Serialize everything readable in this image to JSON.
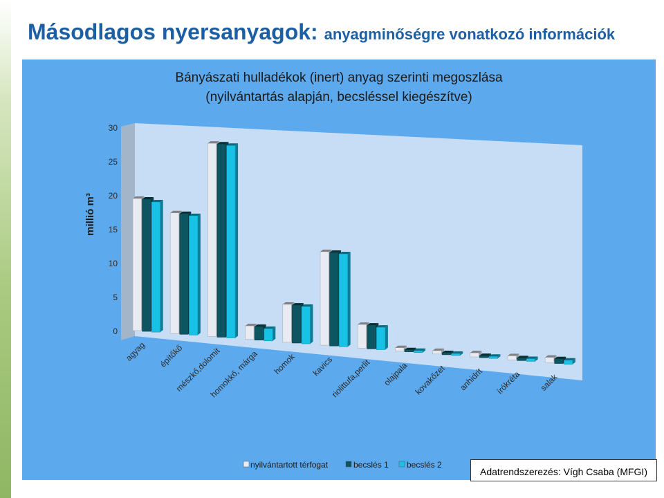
{
  "header": {
    "title_main": "Másodlagos nyersanyagok:",
    "title_sub": "anyagminőségre vonatkozó információk"
  },
  "credit": "Adatrendszerezés: Vígh Csaba (MFGI)",
  "colors": {
    "background": "#5ca9ee",
    "plot_wall": "#c6ddf5",
    "title_blue": "#1d5fa3",
    "series1": "#e8ebf2",
    "series2": "#0d5560",
    "series3": "#18c1e6"
  },
  "chart_data": {
    "type": "bar",
    "title_line1": "Bányászati hulladékok (inert) anyag szerinti megoszlása",
    "title_line2": "(nyilvántartás alapján, becsléssel kiegészítve)",
    "ylabel": "millió m³",
    "ylim": [
      0,
      30
    ],
    "yticks": [
      "0",
      "5",
      "10",
      "15",
      "20",
      "25",
      "30"
    ],
    "categories": [
      "agyag",
      "építőkő",
      "mészkő,dolomit",
      "homokkő, márga",
      "homok",
      "kavics",
      "riolittufa,perlit",
      "olajpala",
      "kovakőzet",
      "anhidrit",
      "írókréta",
      "salak"
    ],
    "series": [
      {
        "name": "nyilvántartott térfogat",
        "values": [
          19.5,
          17.8,
          28.5,
          2,
          5.6,
          13.8,
          3.5,
          0.5,
          0.5,
          0.6,
          0.6,
          0.8
        ]
      },
      {
        "name": "becslés 1",
        "values": [
          19.5,
          17.8,
          28.5,
          2,
          5.6,
          13.8,
          3.5,
          0.3,
          0.3,
          0.3,
          0.4,
          0.7
        ]
      },
      {
        "name": "becslés 2",
        "values": [
          19.2,
          17.6,
          28.4,
          1.8,
          5.5,
          13.7,
          3.3,
          0.3,
          0.3,
          0.3,
          0.4,
          0.6
        ]
      }
    ],
    "grid": false,
    "legend_position": "bottom"
  }
}
